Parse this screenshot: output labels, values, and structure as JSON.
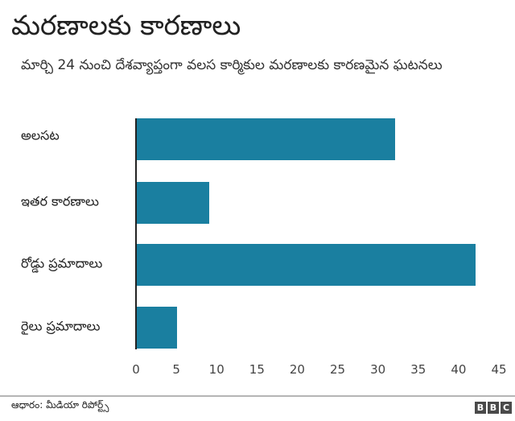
{
  "header": {
    "title": "మరణాలకు కారణాలు",
    "subtitle": "మార్చి 24 నుంచి దేశవ్యాప్తంగా వలస కార్మికుల మరణాలకు కారణమైన ఘటనలు"
  },
  "footer": {
    "source": "ఆధారం: మీడియా రిపోర్ట్స్",
    "logo": [
      "B",
      "B",
      "C"
    ]
  },
  "colors": {
    "bar": "#1a7fa0",
    "axis": "#222222",
    "footer_rule": "#b5b5b5"
  },
  "chart_data": {
    "type": "bar",
    "orientation": "horizontal",
    "title": "మరణాలకు కారణాలు",
    "subtitle": "మార్చి 24 నుంచి దేశవ్యాప్తంగా వలస కార్మికుల మరణాలకు కారణమైన ఘటనలు",
    "categories": [
      "అలసట",
      "ఇతర కారణాలు",
      "రోడ్డు ప్రమాదాలు",
      "రైలు ప్రమాదాలు"
    ],
    "values": [
      32,
      9,
      42,
      5
    ],
    "xlabel": "",
    "ylabel": "",
    "xlim": [
      0,
      45
    ],
    "xticks": [
      "0",
      "5",
      "10",
      "15",
      "20",
      "25",
      "30",
      "35",
      "40",
      "45"
    ],
    "grid": false,
    "legend": null,
    "source": "ఆధారం: మీడియా రిపోర్ట్స్"
  }
}
